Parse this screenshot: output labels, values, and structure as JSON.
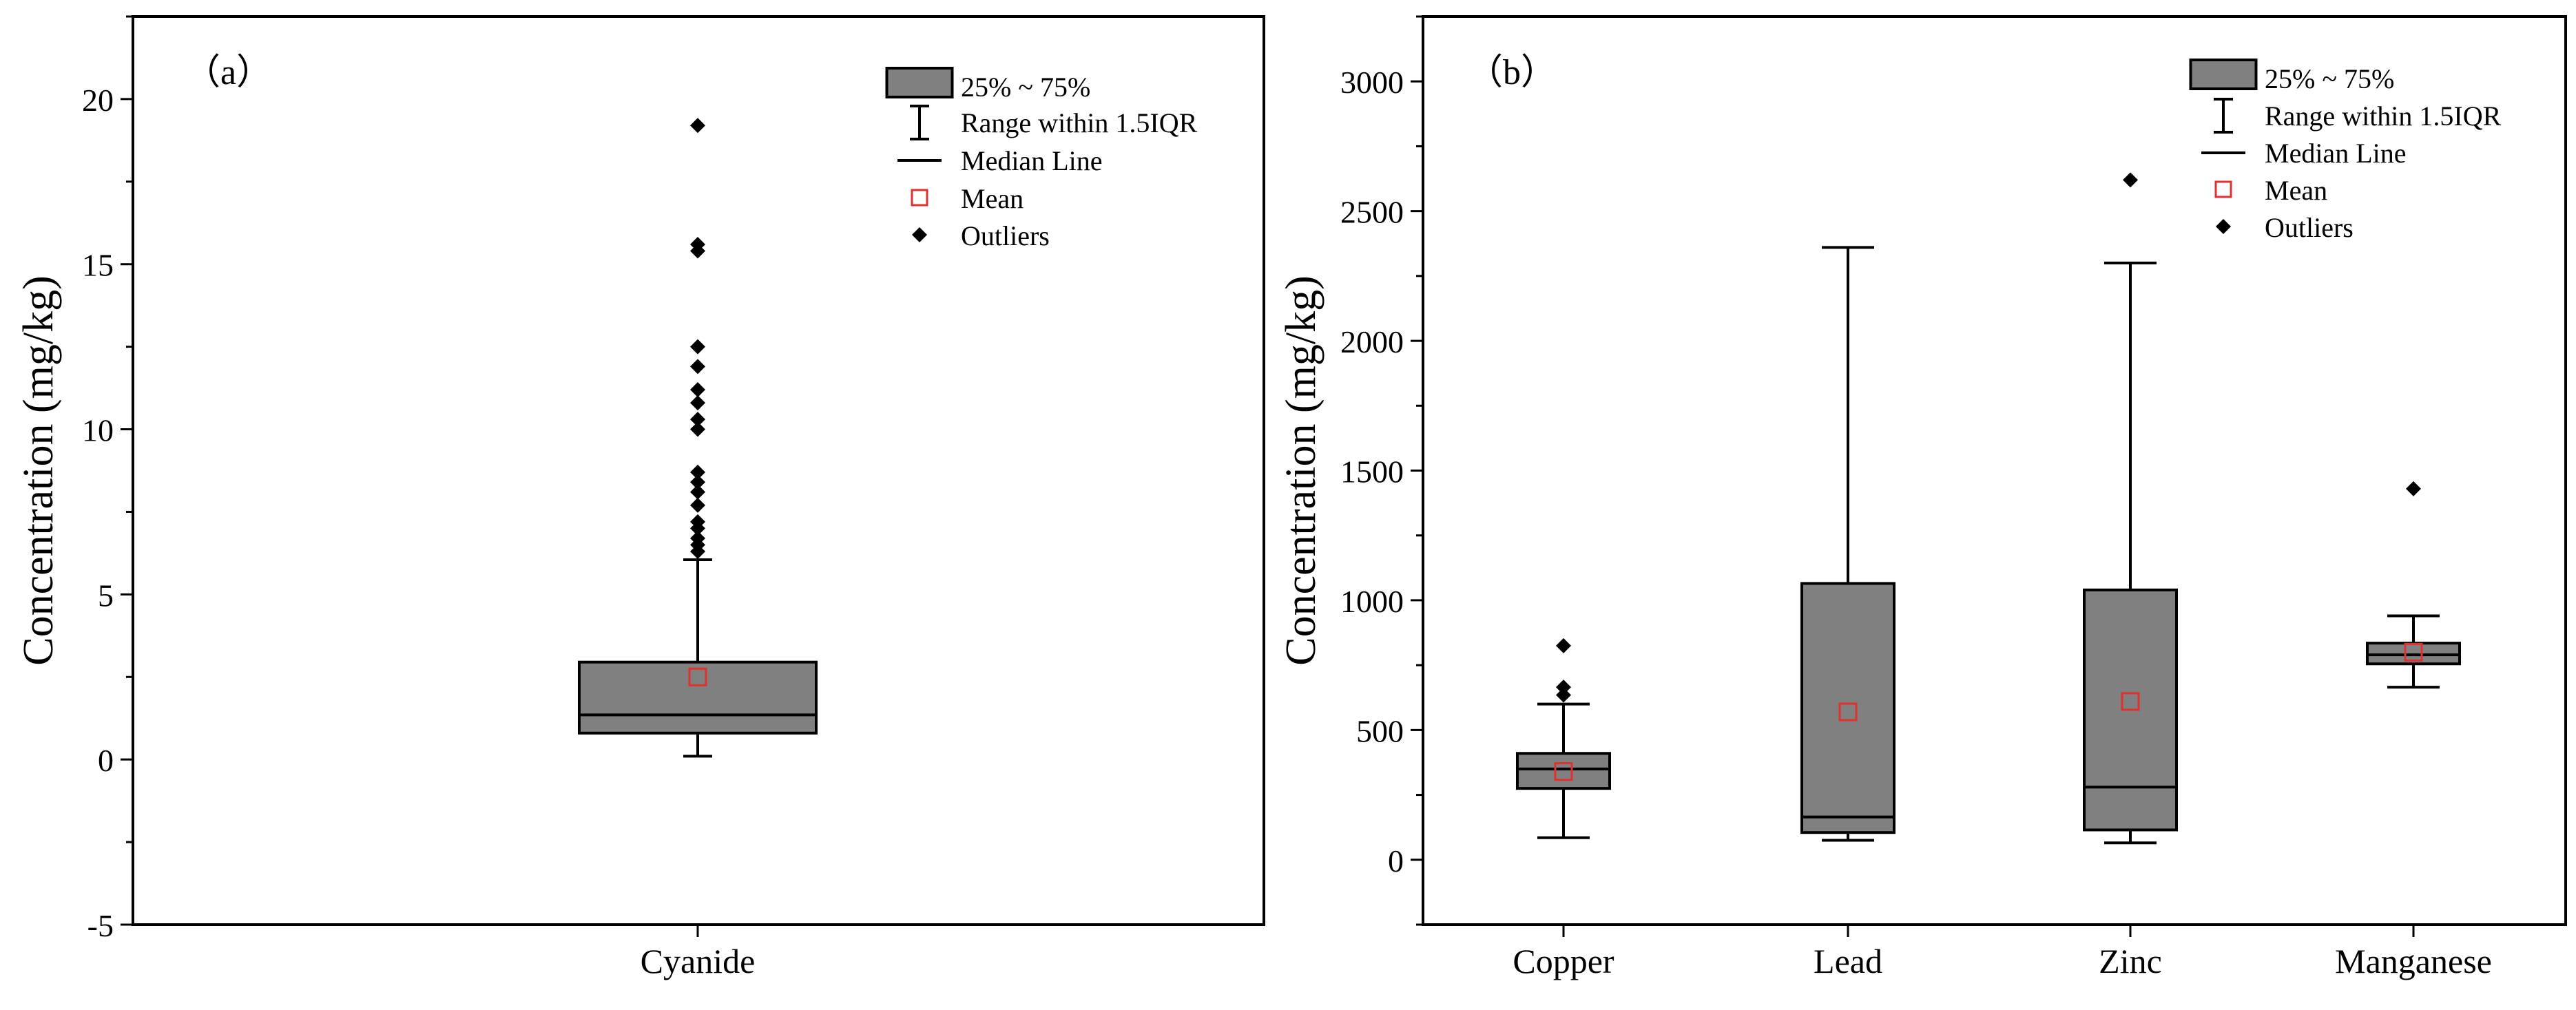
{
  "chart_data": [
    {
      "type": "box",
      "panel_label": "（a）",
      "title": "",
      "xlabel": "",
      "ylabel": "Concentration (mg/kg)",
      "ylim": [
        -5,
        22.5
      ],
      "yticks": [
        -5,
        0,
        5,
        10,
        15,
        20
      ],
      "categories": [
        "Cyanide"
      ],
      "boxes": [
        {
          "name": "Cyanide",
          "whisker_low": 0.1,
          "q1": 0.8,
          "median": 1.35,
          "q3": 2.95,
          "whisker_high": 6.05,
          "mean": 2.5,
          "outliers": [
            6.3,
            6.5,
            6.7,
            7.0,
            7.2,
            7.7,
            8.1,
            8.4,
            8.7,
            10.0,
            10.3,
            10.8,
            11.2,
            11.9,
            12.5,
            15.4,
            15.6,
            19.2
          ]
        }
      ],
      "legend": {
        "position": "top-right",
        "entries": [
          {
            "key": "box",
            "label": "25% ~ 75%"
          },
          {
            "key": "range",
            "label": "Range within 1.5IQR"
          },
          {
            "key": "median",
            "label": "Median Line"
          },
          {
            "key": "mean",
            "label": "Mean"
          },
          {
            "key": "outlier",
            "label": "Outliers"
          }
        ]
      }
    },
    {
      "type": "box",
      "panel_label": "（b）",
      "title": "",
      "xlabel": "",
      "ylabel": "Concentration (mg/kg)",
      "ylim": [
        -250,
        3250
      ],
      "yticks": [
        0,
        500,
        1000,
        1500,
        2000,
        2500,
        3000
      ],
      "categories": [
        "Copper",
        "Lead",
        "Zinc",
        "Manganese"
      ],
      "boxes": [
        {
          "name": "Copper",
          "whisker_low": 85,
          "q1": 275,
          "median": 350,
          "q3": 410,
          "whisker_high": 600,
          "mean": 340,
          "outliers": [
            635,
            665,
            825
          ]
        },
        {
          "name": "Lead",
          "whisker_low": 75,
          "q1": 105,
          "median": 165,
          "q3": 1065,
          "whisker_high": 2360,
          "mean": 570,
          "outliers": []
        },
        {
          "name": "Zinc",
          "whisker_low": 65,
          "q1": 115,
          "median": 280,
          "q3": 1040,
          "whisker_high": 2300,
          "mean": 610,
          "outliers": [
            2620
          ]
        },
        {
          "name": "Manganese",
          "whisker_low": 665,
          "q1": 755,
          "median": 790,
          "q3": 835,
          "whisker_high": 940,
          "mean": 800,
          "outliers": [
            1430
          ]
        }
      ],
      "legend": {
        "position": "top-right",
        "entries": [
          {
            "key": "box",
            "label": "25% ~ 75%"
          },
          {
            "key": "range",
            "label": "Range within 1.5IQR"
          },
          {
            "key": "median",
            "label": "Median Line"
          },
          {
            "key": "mean",
            "label": "Mean"
          },
          {
            "key": "outlier",
            "label": "Outliers"
          }
        ]
      }
    }
  ],
  "colors": {
    "box_fill": "#808080",
    "line": "#000000",
    "mean_marker": "#e03030",
    "outlier": "#000000",
    "background": "#ffffff"
  }
}
